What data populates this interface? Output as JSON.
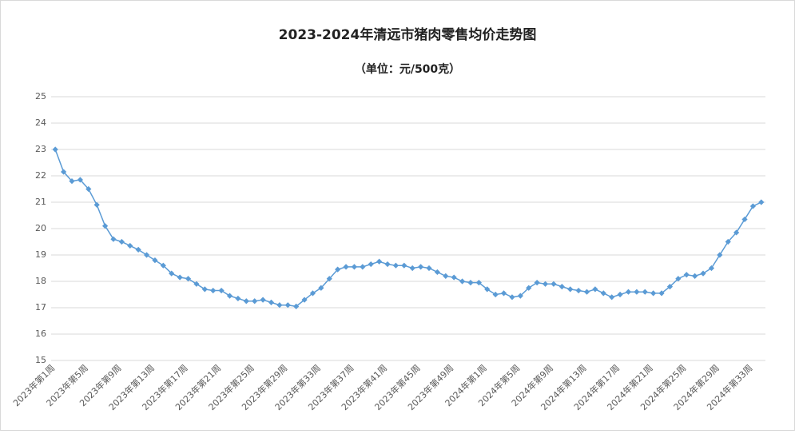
{
  "chart_data": {
    "type": "line",
    "title": "2023-2024年清远市猪肉零售均价走势图",
    "subtitle": "（单位：元/500克）",
    "categories": [
      "2023年第1周",
      null,
      null,
      null,
      "2023年第5周",
      null,
      null,
      null,
      "2023年第9周",
      null,
      null,
      null,
      "2023年第13周",
      null,
      null,
      null,
      "2023年第17周",
      null,
      null,
      null,
      "2023年第21周",
      null,
      null,
      null,
      "2023年第25周",
      null,
      null,
      null,
      "2023年第29周",
      null,
      null,
      null,
      "2023年第33周",
      null,
      null,
      null,
      "2023年第37周",
      null,
      null,
      null,
      "2023年第41周",
      null,
      null,
      null,
      "2023年第45周",
      null,
      null,
      null,
      "2023年第49周",
      null,
      null,
      null,
      "2024年第1周",
      null,
      null,
      null,
      "2024年第5周",
      null,
      null,
      null,
      "2024年第9周",
      null,
      null,
      null,
      "2024年第13周",
      null,
      null,
      null,
      "2024年第17周",
      null,
      null,
      null,
      "2024年第21周",
      null,
      null,
      null,
      "2024年第25周",
      null,
      null,
      null,
      "2024年第29周",
      null,
      null,
      null,
      "2024年第33周",
      null
    ],
    "values": [
      23.0,
      22.15,
      21.8,
      21.85,
      21.5,
      20.9,
      20.1,
      19.6,
      19.5,
      19.35,
      19.2,
      19.0,
      18.8,
      18.6,
      18.3,
      18.15,
      18.1,
      17.9,
      17.7,
      17.65,
      17.65,
      17.45,
      17.35,
      17.25,
      17.25,
      17.3,
      17.2,
      17.1,
      17.1,
      17.05,
      17.3,
      17.55,
      17.75,
      18.1,
      18.45,
      18.55,
      18.55,
      18.55,
      18.65,
      18.75,
      18.65,
      18.6,
      18.6,
      18.5,
      18.55,
      18.5,
      18.35,
      18.2,
      18.15,
      18.0,
      17.95,
      17.95,
      17.7,
      17.5,
      17.55,
      17.4,
      17.45,
      17.75,
      17.95,
      17.9,
      17.9,
      17.8,
      17.7,
      17.65,
      17.6,
      17.7,
      17.55,
      17.4,
      17.5,
      17.6,
      17.6,
      17.6,
      17.55,
      17.55,
      17.8,
      18.1,
      18.25,
      18.2,
      18.3,
      18.5,
      19.0,
      19.5,
      19.85,
      20.35,
      20.85,
      21.0
    ],
    "color": "#5b9bd5",
    "ylim": [
      15,
      25
    ],
    "yticks": [
      15,
      16,
      17,
      18,
      19,
      20,
      21,
      22,
      23,
      24,
      25
    ],
    "grid": true
  }
}
